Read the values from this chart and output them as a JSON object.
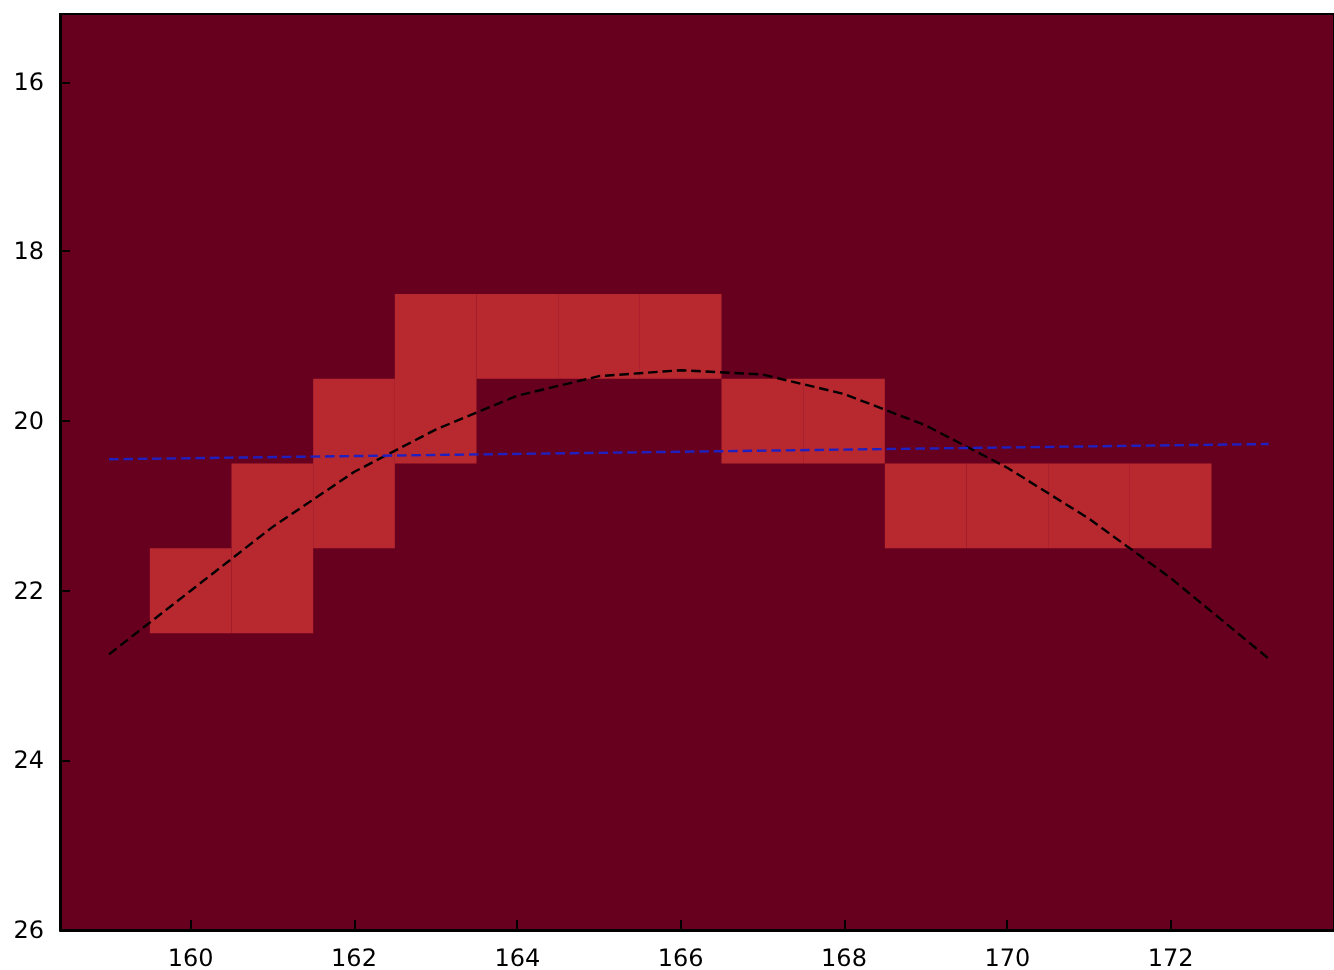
{
  "chart_data": {
    "type": "bar",
    "x": [
      160,
      161,
      162,
      163,
      164,
      165,
      166,
      167,
      168,
      169,
      170,
      171,
      172
    ],
    "base": [
      21.5,
      20.5,
      19.5,
      18.5,
      18.5,
      18.5,
      18.5,
      19.5,
      19.5,
      20.5,
      20.5,
      20.5,
      20.5
    ],
    "values": [
      1,
      2,
      2,
      2,
      1,
      1,
      1,
      1,
      1,
      1,
      1,
      1,
      1
    ],
    "color": "#b8282f",
    "series": [
      {
        "type": "line",
        "color": "#000000",
        "x": [
          159,
          160,
          161,
          162,
          163,
          164,
          165,
          166,
          167,
          168,
          169,
          170,
          171,
          172,
          173.2
        ],
        "values": [
          22.75,
          22.0,
          21.25,
          20.6,
          20.1,
          19.7,
          19.47,
          19.4,
          19.45,
          19.68,
          20.05,
          20.55,
          21.15,
          21.85,
          22.8
        ]
      },
      {
        "type": "line",
        "color": "#2020c0",
        "x": [
          159,
          173.2
        ],
        "values": [
          20.45,
          20.27
        ]
      }
    ],
    "xlim": [
      158.4,
      174
    ],
    "ylim": [
      26,
      15.2
    ],
    "xticks": [
      160,
      162,
      164,
      166,
      168,
      170,
      172
    ],
    "yticks": [
      16,
      18,
      20,
      22,
      24,
      26
    ],
    "grid": false,
    "marker": "none",
    "line_style": "dashed"
  }
}
